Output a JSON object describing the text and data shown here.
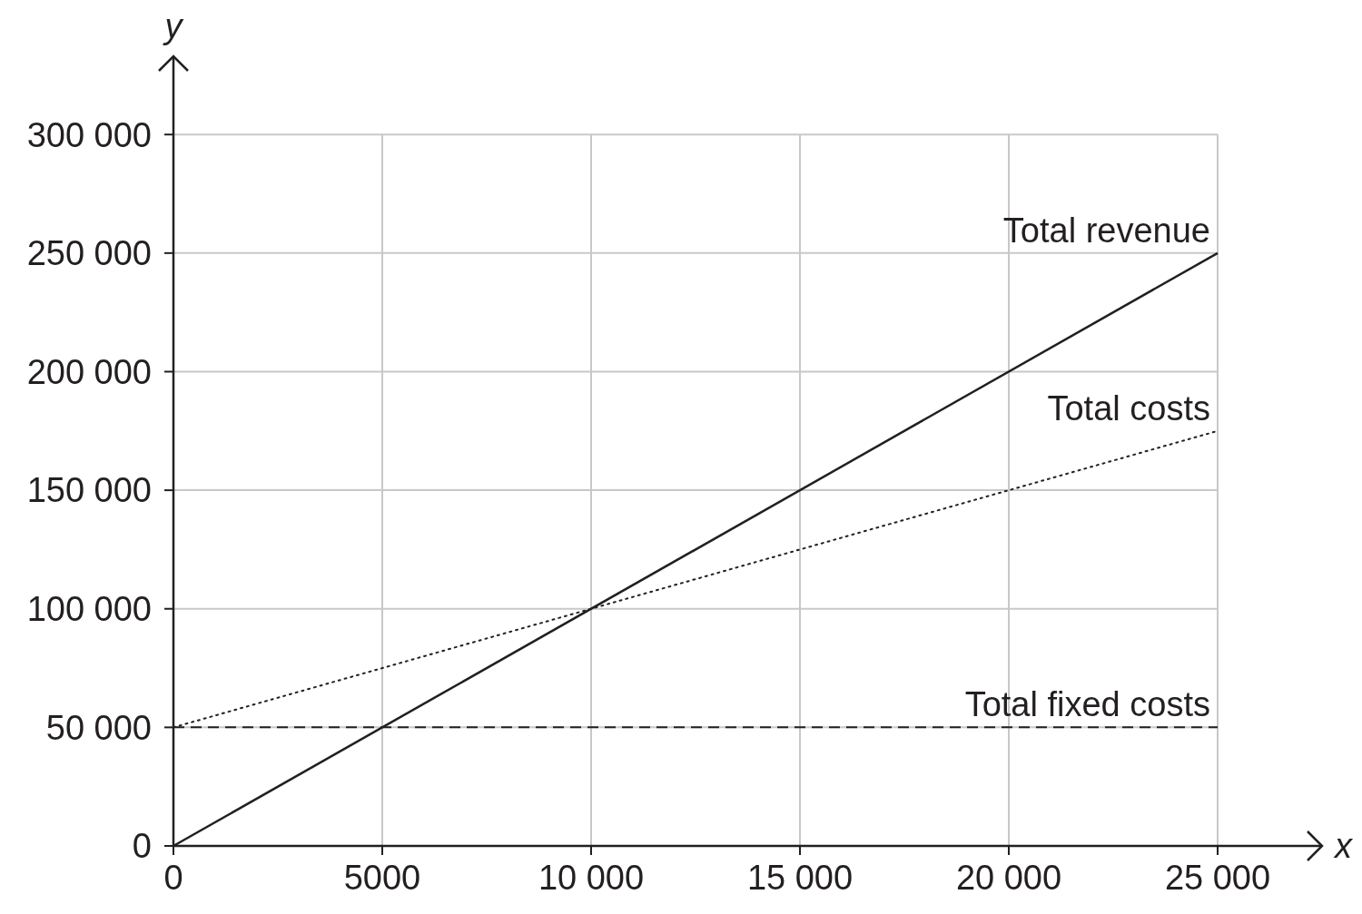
{
  "chart_data": {
    "type": "line",
    "xlabel": "x",
    "ylabel": "y",
    "xlim": [
      0,
      27500
    ],
    "ylim": [
      0,
      333000
    ],
    "xticks": [
      0,
      5000,
      {
        "value": 10000,
        "label": "10 000"
      },
      {
        "value": 15000,
        "label": "15 000"
      },
      {
        "value": 20000,
        "label": "20 000"
      },
      {
        "value": 25000,
        "label": "25 000"
      }
    ],
    "yticks": [
      0,
      {
        "value": 50000,
        "label": "50 000"
      },
      {
        "value": 100000,
        "label": "100 000"
      },
      {
        "value": 150000,
        "label": "150 000"
      },
      {
        "value": 200000,
        "label": "200 000"
      },
      {
        "value": 250000,
        "label": "250 000"
      },
      {
        "value": 300000,
        "label": "300 000"
      }
    ],
    "grid": true,
    "legend": false,
    "marker": "none",
    "x": [
      0,
      25000
    ],
    "series": [
      {
        "name": "Total revenue",
        "color": "#231f20",
        "line_style": "solid",
        "values": [
          0,
          250000
        ]
      },
      {
        "name": "Total costs",
        "color": "#231f20",
        "line_style": "dotted",
        "values": [
          50000,
          175000
        ]
      },
      {
        "name": "Total fixed costs",
        "color": "#231f20",
        "line_style": "dashed",
        "values": [
          50000,
          50000
        ]
      }
    ]
  }
}
